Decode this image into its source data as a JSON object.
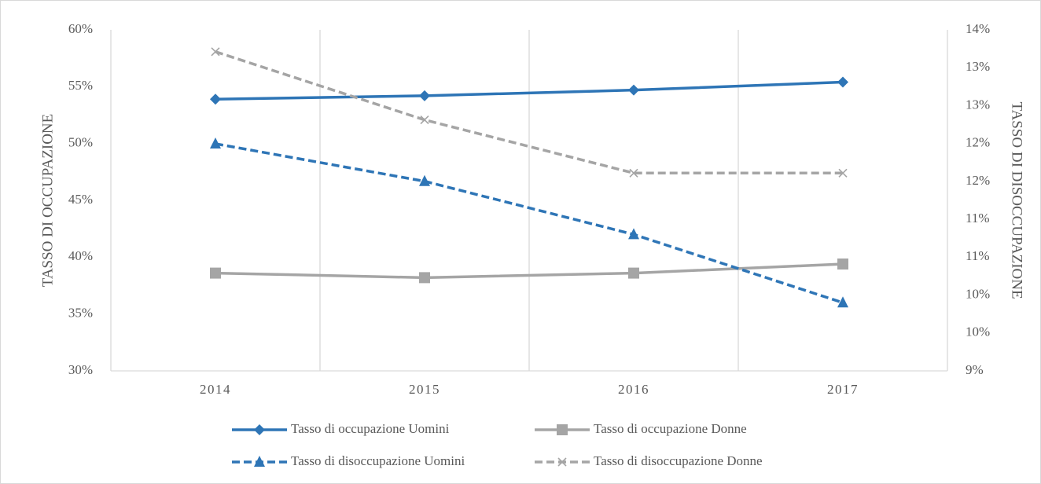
{
  "chart_data": {
    "type": "line",
    "categories": [
      "2014",
      "2015",
      "2016",
      "2017"
    ],
    "ylabel": "TASSO DI OCCUPAZIONE",
    "y2label": "TASSO DI DISOCCUPAZIONE",
    "ylim": [
      30,
      60
    ],
    "yticks": [
      {
        "value": 30,
        "label": "30%"
      },
      {
        "value": 35,
        "label": "35%"
      },
      {
        "value": 40,
        "label": "40%"
      },
      {
        "value": 45,
        "label": "45%"
      },
      {
        "value": 50,
        "label": "50%"
      },
      {
        "value": 55,
        "label": "55%"
      },
      {
        "value": 60,
        "label": "60%"
      }
    ],
    "y2lim": [
      9,
      14
    ],
    "y2ticks": [
      {
        "value": 9,
        "label": "9%"
      },
      {
        "value": 9.556,
        "label": "10%"
      },
      {
        "value": 10.111,
        "label": "10%"
      },
      {
        "value": 10.667,
        "label": "11%"
      },
      {
        "value": 11.222,
        "label": "11%"
      },
      {
        "value": 11.778,
        "label": "12%"
      },
      {
        "value": 12.333,
        "label": "12%"
      },
      {
        "value": 12.889,
        "label": "13%"
      },
      {
        "value": 13.444,
        "label": "13%"
      },
      {
        "value": 14,
        "label": "14%"
      }
    ],
    "grid": "x",
    "legend": "bottom",
    "series": [
      {
        "name": "Tasso di occupazione Uomini",
        "color": "#2e75b6",
        "marker": "diamond",
        "dashed": false,
        "values": [
          53.9,
          54.2,
          54.7,
          55.4
        ]
      },
      {
        "name": "Tasso di occupazione Donne",
        "color": "#a5a5a5",
        "marker": "square",
        "dashed": false,
        "values": [
          38.6,
          38.2,
          38.6,
          39.4
        ]
      },
      {
        "name": "Tasso di disoccupazione Uomini",
        "color": "#2e75b6",
        "marker": "triangle",
        "dashed": true,
        "axis": "y2",
        "values": [
          12.33,
          11.78,
          11.0,
          10.0
        ]
      },
      {
        "name": "Tasso di disoccupazione Donne",
        "color": "#a5a5a5",
        "marker": "x",
        "dashed": true,
        "axis": "y2",
        "values": [
          13.68,
          12.68,
          11.9,
          11.9
        ]
      }
    ]
  }
}
